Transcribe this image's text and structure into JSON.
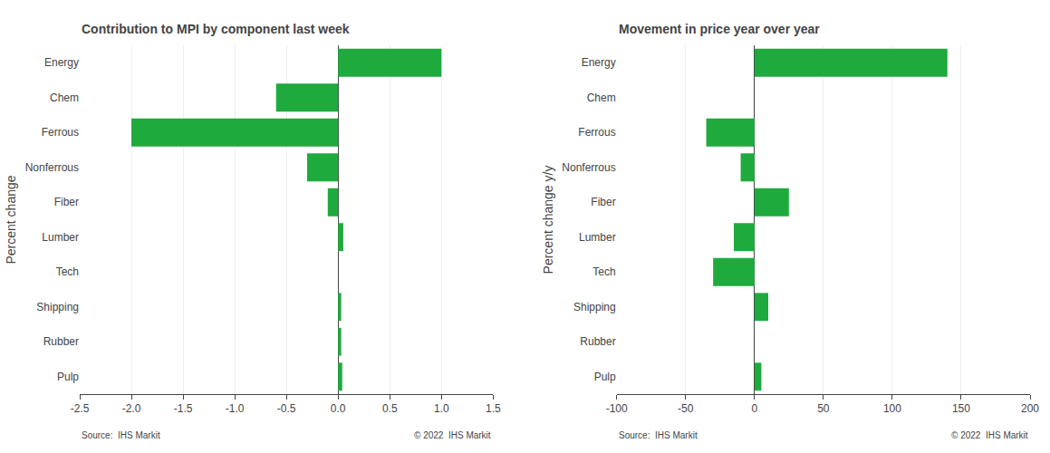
{
  "chart_data": [
    {
      "type": "bar",
      "orientation": "horizontal",
      "title": "Contribution to MPI by component last week",
      "ylabel": "Percent change",
      "categories": [
        "Energy",
        "Chem",
        "Ferrous",
        "Nonferrous",
        "Fiber",
        "Lumber",
        "Tech",
        "Shipping",
        "Rubber",
        "Pulp"
      ],
      "values": [
        1.0,
        -0.6,
        -2.0,
        -0.3,
        -0.1,
        0.05,
        0.0,
        0.03,
        0.03,
        0.04
      ],
      "color": "#1faa3e",
      "xlim": [
        -2.5,
        1.5
      ],
      "xticks": [
        -2.5,
        {
          "value": -2.0,
          "label": "-2.0"
        },
        -1.5,
        {
          "value": -1.0,
          "label": "-1.0"
        },
        -0.5,
        {
          "value": 0.0,
          "label": "0.0"
        },
        0.5,
        {
          "value": 1.0,
          "label": "1.0"
        },
        1.5
      ],
      "grid": true,
      "annotations": [
        "Source:  IHS Markit",
        "© 2022  IHS Markit"
      ]
    },
    {
      "type": "bar",
      "orientation": "horizontal",
      "title": "Movement in price year over year",
      "ylabel": "Percent change y/y",
      "categories": [
        "Energy",
        "Chem",
        "Ferrous",
        "Nonferrous",
        "Fiber",
        "Lumber",
        "Tech",
        "Shipping",
        "Rubber",
        "Pulp"
      ],
      "values": [
        140,
        0,
        -35,
        -10,
        25,
        -15,
        -30,
        10,
        0,
        5
      ],
      "color": "#1faa3e",
      "xlim": [
        -100,
        200
      ],
      "xticks": [
        -100,
        -50,
        0,
        50,
        100,
        150,
        200
      ],
      "grid": true,
      "annotations": [
        "Source:  IHS Markit",
        "© 2022  IHS Markit"
      ]
    }
  ]
}
